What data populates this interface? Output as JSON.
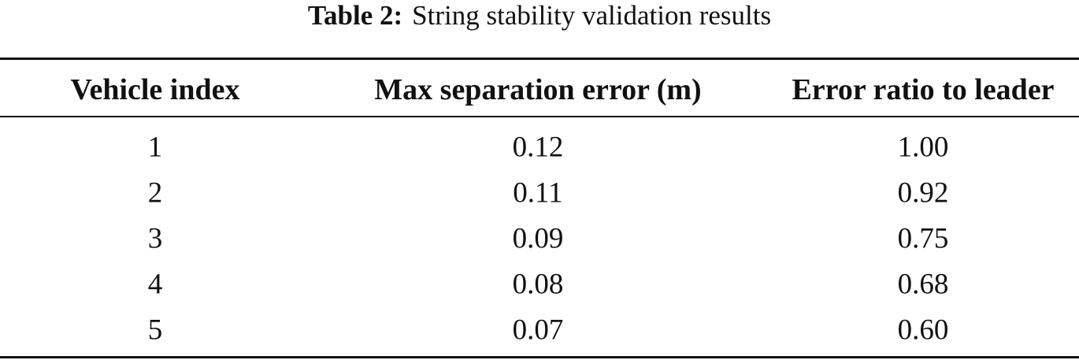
{
  "caption": {
    "label": "Table 2:",
    "text": "String stability validation results"
  },
  "table": {
    "header": [
      "Vehicle index",
      "Max separation error (m)",
      "Error ratio to leader"
    ],
    "rows": [
      [
        "1",
        "0.12",
        "1.00"
      ],
      [
        "2",
        "0.11",
        "0.92"
      ],
      [
        "3",
        "0.09",
        "0.75"
      ],
      [
        "4",
        "0.08",
        "0.68"
      ],
      [
        "5",
        "0.07",
        "0.60"
      ]
    ]
  }
}
